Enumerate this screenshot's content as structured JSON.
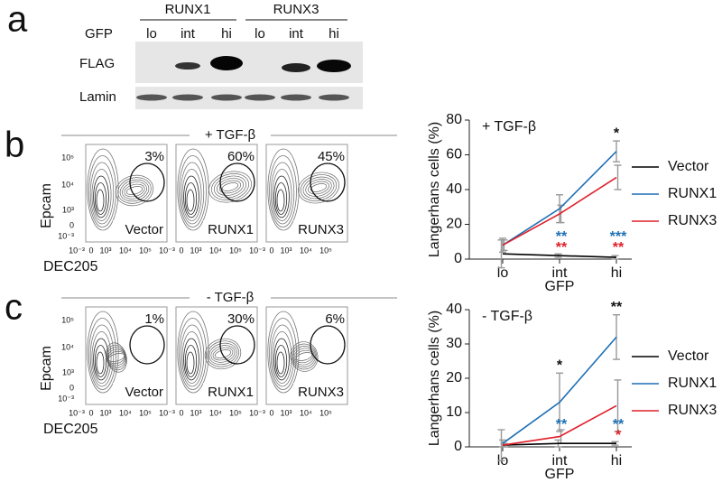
{
  "panel_a": {
    "label": "a",
    "groups": [
      "RUNX1",
      "RUNX3"
    ],
    "row_label": "GFP",
    "lanes": [
      "lo",
      "int",
      "hi",
      "lo",
      "int",
      "hi"
    ],
    "blots": [
      "FLAG",
      "Lamin"
    ]
  },
  "panel_b": {
    "label": "b",
    "header": "+ TGF-β",
    "y_axis": "Epcam",
    "x_axis": "DEC205",
    "y_ticks": [
      "10⁵",
      "10⁴",
      "10³",
      "0",
      "10⁻³"
    ],
    "x_ticks": [
      "10⁻³",
      "0",
      "10³",
      "10⁴",
      "10⁵"
    ],
    "plots": [
      {
        "name": "Vector",
        "percent": "3%"
      },
      {
        "name": "RUNX1",
        "percent": "60%"
      },
      {
        "name": "RUNX3",
        "percent": "45%"
      }
    ]
  },
  "panel_c": {
    "label": "c",
    "header": "- TGF-β",
    "y_axis": "Epcam",
    "x_axis": "DEC205",
    "y_ticks": [
      "10⁵",
      "10⁴",
      "10³",
      "0",
      "10⁻³"
    ],
    "x_ticks": [
      "10⁻³",
      "0",
      "10³",
      "10⁴",
      "10⁵"
    ],
    "plots": [
      {
        "name": "Vector",
        "percent": "1%"
      },
      {
        "name": "RUNX1",
        "percent": "30%"
      },
      {
        "name": "RUNX3",
        "percent": "6%"
      }
    ]
  },
  "chart_data": [
    {
      "type": "line",
      "annotation": "+ TGF-β",
      "x_label": "GFP",
      "y_label": "Langerhans cells (%)",
      "categories": [
        "lo",
        "int",
        "hi"
      ],
      "ylim": [
        0,
        80
      ],
      "yticks": [
        0,
        20,
        40,
        60,
        80
      ],
      "top_stars": [
        null,
        null,
        "*"
      ],
      "series": [
        {
          "name": "Vector",
          "color": "#000000",
          "values": [
            3,
            2,
            1
          ],
          "errors": [
            8,
            1,
            1
          ],
          "stars": [
            null,
            null,
            null
          ]
        },
        {
          "name": "RUNX1",
          "color": "#1f6fb5",
          "values": [
            8,
            29,
            62
          ],
          "errors": [
            4,
            8,
            6
          ],
          "stars": [
            null,
            "**",
            "***"
          ]
        },
        {
          "name": "RUNX3",
          "color": "#e0202a",
          "values": [
            8,
            26,
            47
          ],
          "errors": [
            3,
            5,
            7
          ],
          "stars": [
            null,
            "**",
            "**"
          ]
        }
      ]
    },
    {
      "type": "line",
      "annotation": "- TGF-β",
      "x_label": "GFP",
      "y_label": "Langerhans cells (%)",
      "categories": [
        "lo",
        "int",
        "hi"
      ],
      "ylim": [
        0,
        40
      ],
      "yticks": [
        0,
        10,
        20,
        30,
        40
      ],
      "top_stars": [
        null,
        "*",
        "**"
      ],
      "series": [
        {
          "name": "Vector",
          "color": "#000000",
          "values": [
            0.5,
            1,
            1
          ],
          "errors": [
            4.5,
            1,
            0.5
          ],
          "stars": [
            null,
            null,
            null
          ]
        },
        {
          "name": "RUNX1",
          "color": "#1f6fb5",
          "values": [
            1,
            13,
            32
          ],
          "errors": [
            1,
            8.5,
            6.5
          ],
          "stars": [
            null,
            "**",
            "**"
          ]
        },
        {
          "name": "RUNX3",
          "color": "#e0202a",
          "values": [
            0.5,
            3,
            12
          ],
          "errors": [
            0.5,
            2,
            7.5
          ],
          "stars": [
            null,
            null,
            "*"
          ]
        }
      ]
    }
  ]
}
